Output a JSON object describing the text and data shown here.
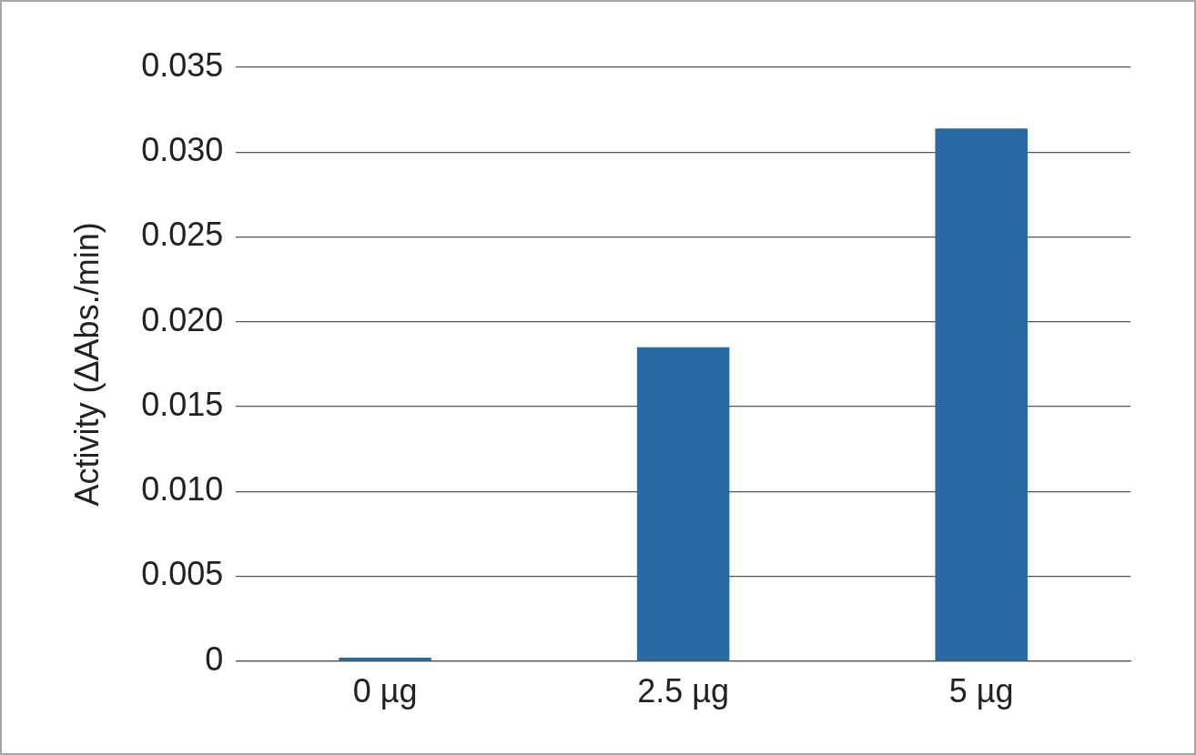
{
  "chart_data": {
    "type": "bar",
    "ylabel": "Activity (ΔAbs./min)",
    "categories": [
      "0 µg",
      "2.5 µg",
      "5 µg"
    ],
    "values": [
      0.0002,
      0.0185,
      0.0314
    ],
    "color": "#2a6aa3",
    "ylim": [
      0,
      0.035
    ],
    "yticks": [
      0,
      0.005,
      {
        "value": 0.01,
        "label": "0.010"
      },
      0.015,
      {
        "value": 0.02,
        "label": "0.020"
      },
      0.025,
      {
        "value": 0.03,
        "label": "0.030"
      },
      0.035
    ],
    "grid": "y",
    "legend": false
  }
}
